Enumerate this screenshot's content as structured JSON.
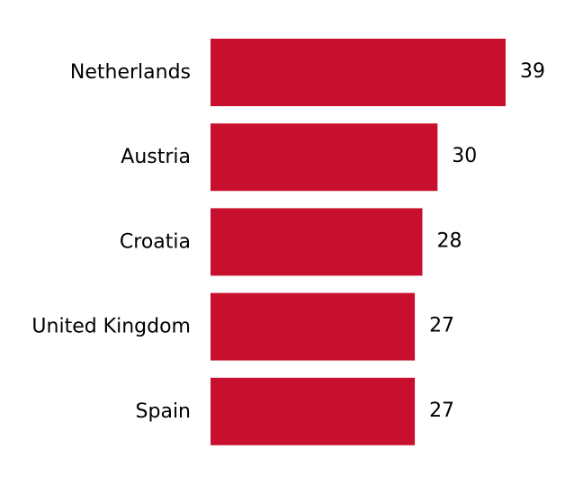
{
  "chart_data": {
    "type": "bar",
    "orientation": "horizontal",
    "categories": [
      "Netherlands",
      "Austria",
      "Croatia",
      "United Kingdom",
      "Spain"
    ],
    "values": [
      39,
      30,
      28,
      27,
      27
    ],
    "value_labels": [
      "39",
      "30",
      "28",
      "27",
      "27"
    ],
    "bar_color": "#C8102E",
    "xlim": [
      0,
      39
    ],
    "grid": false,
    "legend": "none"
  }
}
